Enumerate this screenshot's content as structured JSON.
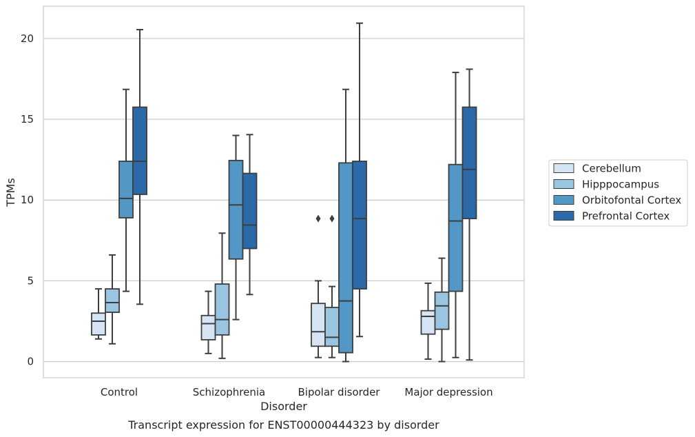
{
  "caption": "Transcript expression for ENST00000444323 by disorder",
  "chart_data": {
    "type": "box",
    "xlabel": "Disorder",
    "ylabel": "TPMs",
    "ylim": [
      -1,
      22
    ],
    "yticks": [
      0,
      5,
      10,
      15,
      20
    ],
    "grid": "horizontal",
    "legend_position": "right",
    "categories": [
      "Control",
      "Schizophrenia",
      "Bipolar disorder",
      "Major depression"
    ],
    "series": [
      {
        "name": "Cerebellum",
        "color": "#d6e5f3",
        "boxes": [
          {
            "whislo": 1.4,
            "q1": 1.65,
            "med": 2.5,
            "q3": 3.0,
            "whishi": 4.5,
            "fliers": []
          },
          {
            "whislo": 0.5,
            "q1": 1.35,
            "med": 2.35,
            "q3": 2.85,
            "whishi": 4.35,
            "fliers": []
          },
          {
            "whislo": 0.25,
            "q1": 0.95,
            "med": 1.85,
            "q3": 3.6,
            "whishi": 5.0,
            "fliers": [
              8.85
            ]
          },
          {
            "whislo": 0.15,
            "q1": 1.7,
            "med": 2.8,
            "q3": 3.15,
            "whishi": 4.85,
            "fliers": []
          }
        ]
      },
      {
        "name": "Hipppocampus",
        "color": "#9ac5e0",
        "boxes": [
          {
            "whislo": 1.1,
            "q1": 3.05,
            "med": 3.65,
            "q3": 4.5,
            "whishi": 6.6,
            "fliers": []
          },
          {
            "whislo": 0.2,
            "q1": 1.65,
            "med": 2.6,
            "q3": 4.8,
            "whishi": 7.95,
            "fliers": []
          },
          {
            "whislo": 0.25,
            "q1": 0.95,
            "med": 1.5,
            "q3": 3.35,
            "whishi": 4.65,
            "fliers": [
              8.85
            ]
          },
          {
            "whislo": 0.0,
            "q1": 2.0,
            "med": 3.45,
            "q3": 4.3,
            "whishi": 6.4,
            "fliers": []
          }
        ]
      },
      {
        "name": "Orbitofontal Cortex",
        "color": "#5297c6",
        "boxes": [
          {
            "whislo": 4.35,
            "q1": 8.9,
            "med": 10.1,
            "q3": 12.4,
            "whishi": 16.85,
            "fliers": []
          },
          {
            "whislo": 2.6,
            "q1": 6.35,
            "med": 9.7,
            "q3": 12.45,
            "whishi": 14.0,
            "fliers": []
          },
          {
            "whislo": 0.0,
            "q1": 0.55,
            "med": 3.75,
            "q3": 12.3,
            "whishi": 16.85,
            "fliers": []
          },
          {
            "whislo": 0.25,
            "q1": 4.35,
            "med": 8.7,
            "q3": 12.2,
            "whishi": 17.9,
            "fliers": []
          }
        ]
      },
      {
        "name": "Prefrontal Cortex",
        "color": "#2b69a8",
        "boxes": [
          {
            "whislo": 3.55,
            "q1": 10.35,
            "med": 12.4,
            "q3": 15.75,
            "whishi": 20.55,
            "fliers": []
          },
          {
            "whislo": 4.15,
            "q1": 7.0,
            "med": 8.45,
            "q3": 11.65,
            "whishi": 14.05,
            "fliers": []
          },
          {
            "whislo": 1.55,
            "q1": 4.5,
            "med": 8.85,
            "q3": 12.4,
            "whishi": 20.95,
            "fliers": []
          },
          {
            "whislo": 0.1,
            "q1": 8.85,
            "med": 11.9,
            "q3": 15.75,
            "whishi": 18.1,
            "fliers": []
          }
        ]
      }
    ]
  }
}
